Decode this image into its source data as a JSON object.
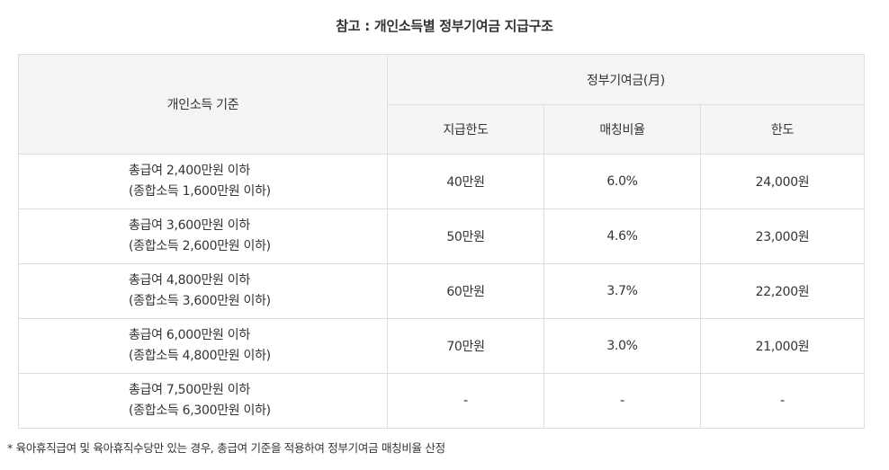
{
  "title": "참고 : 개인소득별 정부기여금 지급구조",
  "table": {
    "header_income": "개인소득 기준",
    "header_contribution": "정부기여금(月)",
    "sub_headers": [
      "지급한도",
      "매칭비율",
      "한도"
    ],
    "rows": [
      {
        "income_line1": "총급여 2,400만원 이하",
        "income_line2": "(종합소득 1,600만원 이하)",
        "limit": "40만원",
        "ratio": "6.0%",
        "cap": "24,000원"
      },
      {
        "income_line1": "총급여 3,600만원 이하",
        "income_line2": "(종합소득 2,600만원 이하)",
        "limit": "50만원",
        "ratio": "4.6%",
        "cap": "23,000원"
      },
      {
        "income_line1": "총급여 4,800만원 이하",
        "income_line2": "(종합소득 3,600만원 이하)",
        "limit": "60만원",
        "ratio": "3.7%",
        "cap": "22,200원"
      },
      {
        "income_line1": "총급여 6,000만원 이하",
        "income_line2": "(종합소득 4,800만원 이하)",
        "limit": "70만원",
        "ratio": "3.0%",
        "cap": "21,000원"
      },
      {
        "income_line1": "총급여 7,500만원 이하",
        "income_line2": "(종합소득 6,300만원 이하)",
        "limit": "-",
        "ratio": "-",
        "cap": "-"
      }
    ]
  },
  "footnote": "* 육아휴직급여 및 육아휴직수당만 있는 경우, 총급여 기준을 적용하여 정부기여금 매칭비율 산정"
}
